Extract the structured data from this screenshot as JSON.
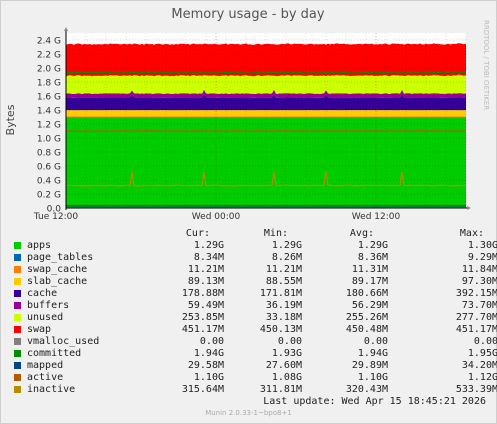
{
  "title": "Memory usage - by day",
  "side_label": "RRDTOOL / TOBI OETIKER",
  "footer": {
    "last_update": "Last update:  Wed Apr 15 18:45:21 2026",
    "version": "Munin 2.0.33-1~bpo8+1"
  },
  "legend": {
    "headers": [
      "Cur:",
      "Min:",
      "Avg:",
      "Max:"
    ],
    "rows": [
      {
        "name": "apps",
        "color": "#00cc00",
        "cur": "1.29G",
        "min": "1.29G",
        "avg": "1.29G",
        "max": "1.30G"
      },
      {
        "name": "page_tables",
        "color": "#0066b3",
        "cur": "8.34M",
        "min": "8.26M",
        "avg": "8.36M",
        "max": "9.29M"
      },
      {
        "name": "swap_cache",
        "color": "#ff8000",
        "cur": "11.21M",
        "min": "11.21M",
        "avg": "11.31M",
        "max": "11.84M"
      },
      {
        "name": "slab_cache",
        "color": "#ffcc00",
        "cur": "89.13M",
        "min": "88.55M",
        "avg": "89.17M",
        "max": "97.30M"
      },
      {
        "name": "cache",
        "color": "#330099",
        "cur": "178.88M",
        "min": "171.81M",
        "avg": "180.66M",
        "max": "392.15M"
      },
      {
        "name": "buffers",
        "color": "#990099",
        "cur": "59.49M",
        "min": "36.19M",
        "avg": "56.29M",
        "max": "73.70M"
      },
      {
        "name": "unused",
        "color": "#ccff00",
        "cur": "253.85M",
        "min": "33.18M",
        "avg": "255.26M",
        "max": "277.70M"
      },
      {
        "name": "swap",
        "color": "#ff0000",
        "cur": "451.17M",
        "min": "450.13M",
        "avg": "450.48M",
        "max": "451.17M"
      },
      {
        "name": "vmalloc_used",
        "color": "#808080",
        "cur": "0.00",
        "min": "0.00",
        "avg": "0.00",
        "max": "0.00"
      },
      {
        "name": "committed",
        "color": "#008f00",
        "cur": "1.94G",
        "min": "1.93G",
        "avg": "1.94G",
        "max": "1.95G"
      },
      {
        "name": "mapped",
        "color": "#00487d",
        "cur": "29.58M",
        "min": "27.60M",
        "avg": "29.89M",
        "max": "34.20M"
      },
      {
        "name": "active",
        "color": "#b35a00",
        "cur": "1.10G",
        "min": "1.08G",
        "avg": "1.10G",
        "max": "1.12G"
      },
      {
        "name": "inactive",
        "color": "#b38f00",
        "cur": "315.64M",
        "min": "311.81M",
        "avg": "320.43M",
        "max": "533.39M"
      }
    ]
  },
  "chart_data": {
    "type": "area",
    "title": "Memory usage - by day",
    "ylabel": "Bytes",
    "xlabel": "",
    "ylim": [
      0,
      2.5
    ],
    "y_unit": "G",
    "y_ticks": [
      0.0,
      0.2,
      0.4,
      0.6,
      0.8,
      1.0,
      1.2,
      1.4,
      1.6,
      1.8,
      2.0,
      2.2,
      2.4
    ],
    "y_tick_labels": [
      "0.0",
      "0.2 G",
      "0.4 G",
      "0.6 G",
      "0.8 G",
      "1.0 G",
      "1.2 G",
      "1.4 G",
      "1.6 G",
      "1.8 G",
      "2.0 G",
      "2.2 G",
      "2.4 G"
    ],
    "x_range_hours": [
      -30,
      0
    ],
    "x_ticks": [
      {
        "label": "Tue 12:00",
        "hour": -30.75
      },
      {
        "label": "Wed 00:00",
        "hour": -18.75
      },
      {
        "label": "Wed 12:00",
        "hour": -6.75
      }
    ],
    "grid": true,
    "stacked_series": [
      {
        "name": "apps",
        "color": "#00cc00",
        "value": 1.29
      },
      {
        "name": "page_tables",
        "color": "#0066b3",
        "value": 0.0084
      },
      {
        "name": "swap_cache",
        "color": "#ff8000",
        "value": 0.0113
      },
      {
        "name": "slab_cache",
        "color": "#ffcc00",
        "value": 0.0892
      },
      {
        "name": "cache",
        "color": "#330099",
        "value": 0.1807
      },
      {
        "name": "buffers",
        "color": "#990099",
        "value": 0.0563
      },
      {
        "name": "unused",
        "color": "#ccff00",
        "value": 0.2553
      },
      {
        "name": "swap",
        "color": "#ff0000",
        "value": 0.4505
      }
    ],
    "line_series": [
      {
        "name": "committed",
        "color": "#008f00",
        "value": 1.94
      },
      {
        "name": "mapped",
        "color": "#00487d",
        "value": 0.0299
      },
      {
        "name": "active",
        "color": "#b35a00",
        "value": 1.1
      },
      {
        "name": "inactive",
        "color": "#b38f00",
        "value": 0.3204
      }
    ]
  }
}
